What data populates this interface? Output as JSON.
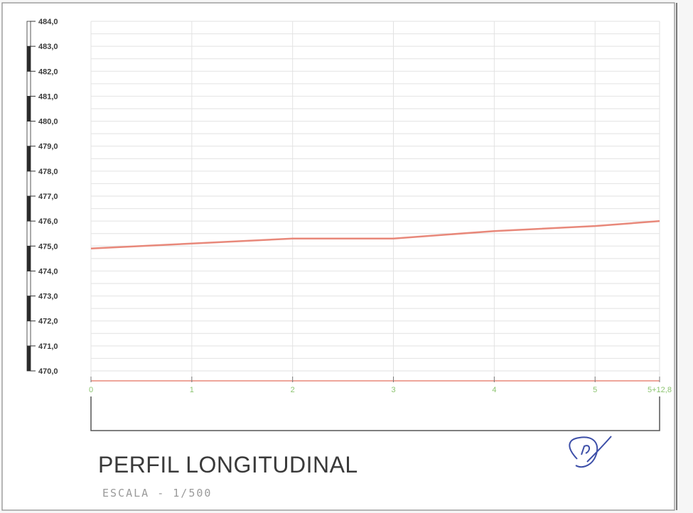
{
  "sheet": {
    "title": "PERFIL LONGITUDINAL",
    "scale_label": "ESCALA - 1/500"
  },
  "chart_data": {
    "type": "line",
    "title": "PERFIL LONGITUDINAL",
    "subtitle": "ESCALA - 1/500",
    "xlabel": "",
    "ylabel": "",
    "y_tick_labels": [
      "470,0",
      "471,0",
      "472,0",
      "473,0",
      "474,0",
      "475,0",
      "476,0",
      "477,0",
      "478,0",
      "479,0",
      "480,0",
      "481,0",
      "482,0",
      "483,0",
      "484,0"
    ],
    "y_ticks": [
      470,
      471,
      472,
      473,
      474,
      475,
      476,
      477,
      478,
      479,
      480,
      481,
      482,
      483,
      484
    ],
    "ylim": [
      470,
      484
    ],
    "x_tick_labels": [
      "0",
      "1",
      "2",
      "3",
      "4",
      "5",
      "5+12,8"
    ],
    "x_ticks": [
      0,
      1,
      2,
      3,
      4,
      5,
      5.64
    ],
    "xlim": [
      0,
      5.64
    ],
    "grid": true,
    "series": [
      {
        "x": [
          0,
          1,
          2,
          3,
          4,
          5,
          5.64
        ],
        "values": [
          474.9,
          475.1,
          475.3,
          475.3,
          475.6,
          475.8,
          476.0
        ]
      }
    ],
    "colors": {
      "profile": "#e8887a",
      "station_labels": "#8cc470",
      "axis": "#5a5a5a",
      "grid": "#e2e2e2"
    }
  }
}
